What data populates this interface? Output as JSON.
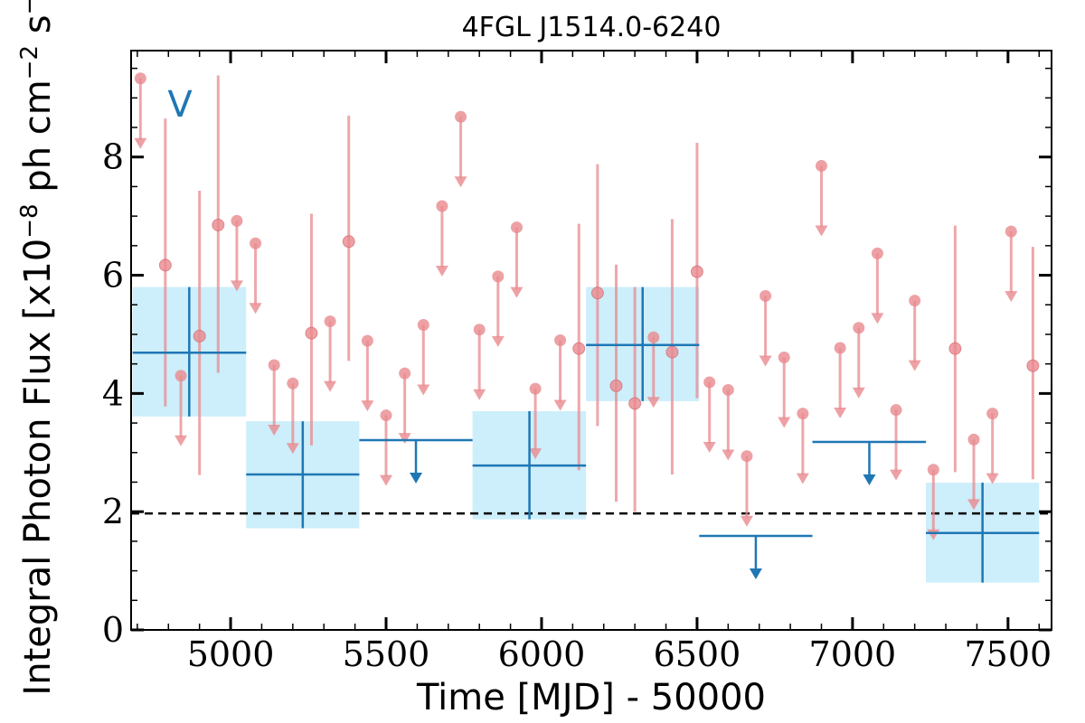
{
  "chart_data": {
    "type": "scatter",
    "title": "4FGL J1514.0-6240",
    "xlabel": "Time [MJD] - 50000",
    "ylabel": "Integral Photon Flux [x10",
    "ylabel_exp": "−8",
    "ylabel_mid": " ph cm",
    "ylabel_exp2": "−2",
    "ylabel_end": " s",
    "ylabel_exp3": "−1",
    "ylabel_close": "]",
    "panel_label": "V",
    "xlim": [
      4680,
      7640
    ],
    "ylim": [
      0,
      9.8
    ],
    "x_ticks": [
      5000,
      5500,
      6000,
      6500,
      7000,
      7500
    ],
    "y_ticks": [
      0,
      2,
      4,
      6,
      8
    ],
    "reference_line": 1.97,
    "colors": {
      "fine_bins": "#e88a8f",
      "coarse_bins": "#1f77b4",
      "coarse_box": "#cdeefb",
      "reference": "#000000"
    },
    "fine_detections": [
      {
        "x": 4790,
        "y": 6.17,
        "low": 3.78,
        "high": 8.65
      },
      {
        "x": 4900,
        "y": 4.97,
        "low": 2.62,
        "high": 7.43
      },
      {
        "x": 4960,
        "y": 6.85,
        "low": 4.35,
        "high": 9.38
      },
      {
        "x": 5260,
        "y": 5.02,
        "low": 3.12,
        "high": 7.04
      },
      {
        "x": 5380,
        "y": 6.57,
        "low": 4.55,
        "high": 8.7
      },
      {
        "x": 6120,
        "y": 4.76,
        "low": 2.7,
        "high": 6.87
      },
      {
        "x": 6180,
        "y": 5.7,
        "low": 3.45,
        "high": 7.88
      },
      {
        "x": 6240,
        "y": 4.13,
        "low": 2.17,
        "high": 6.18
      },
      {
        "x": 6300,
        "y": 3.83,
        "low": 2.0,
        "high": 5.8
      },
      {
        "x": 6420,
        "y": 4.7,
        "low": 2.63,
        "high": 6.95
      },
      {
        "x": 6500,
        "y": 6.06,
        "low": 3.92,
        "high": 8.24
      },
      {
        "x": 7330,
        "y": 4.76,
        "low": 2.67,
        "high": 6.84
      },
      {
        "x": 7580,
        "y": 4.47,
        "low": 2.55,
        "high": 6.48
      }
    ],
    "fine_upper_limits": [
      {
        "x": 4710,
        "y": 9.33
      },
      {
        "x": 4840,
        "y": 4.3
      },
      {
        "x": 5020,
        "y": 6.92
      },
      {
        "x": 5080,
        "y": 6.54
      },
      {
        "x": 5140,
        "y": 4.48
      },
      {
        "x": 5200,
        "y": 4.17
      },
      {
        "x": 5320,
        "y": 5.22
      },
      {
        "x": 5440,
        "y": 4.89
      },
      {
        "x": 5500,
        "y": 3.63
      },
      {
        "x": 5560,
        "y": 4.34
      },
      {
        "x": 5620,
        "y": 5.16
      },
      {
        "x": 5680,
        "y": 7.17
      },
      {
        "x": 5740,
        "y": 8.68
      },
      {
        "x": 5800,
        "y": 5.08
      },
      {
        "x": 5860,
        "y": 5.98
      },
      {
        "x": 5920,
        "y": 6.81
      },
      {
        "x": 5980,
        "y": 4.08
      },
      {
        "x": 6060,
        "y": 4.9
      },
      {
        "x": 6360,
        "y": 4.95
      },
      {
        "x": 6540,
        "y": 4.19
      },
      {
        "x": 6600,
        "y": 4.06
      },
      {
        "x": 6660,
        "y": 2.94
      },
      {
        "x": 6720,
        "y": 5.65
      },
      {
        "x": 6780,
        "y": 4.61
      },
      {
        "x": 6840,
        "y": 3.66
      },
      {
        "x": 6900,
        "y": 7.85
      },
      {
        "x": 6960,
        "y": 4.77
      },
      {
        "x": 7020,
        "y": 5.11
      },
      {
        "x": 7080,
        "y": 6.37
      },
      {
        "x": 7140,
        "y": 3.72
      },
      {
        "x": 7200,
        "y": 5.57
      },
      {
        "x": 7260,
        "y": 2.71
      },
      {
        "x": 7390,
        "y": 3.22
      },
      {
        "x": 7450,
        "y": 3.66
      },
      {
        "x": 7510,
        "y": 6.74
      }
    ],
    "coarse_detections": [
      {
        "x": 4867,
        "x_lo": 4685,
        "x_hi": 5050,
        "y": 4.69,
        "low": 3.61,
        "high": 5.8
      },
      {
        "x": 5232,
        "x_lo": 5050,
        "x_hi": 5414,
        "y": 2.63,
        "low": 1.72,
        "high": 3.53
      },
      {
        "x": 5961,
        "x_lo": 5778,
        "x_hi": 6143,
        "y": 2.78,
        "low": 1.87,
        "high": 3.7
      },
      {
        "x": 6325,
        "x_lo": 6143,
        "x_hi": 6507,
        "y": 4.82,
        "low": 3.87,
        "high": 5.8
      },
      {
        "x": 7418,
        "x_lo": 7236,
        "x_hi": 7600,
        "y": 1.64,
        "low": 0.8,
        "high": 2.49
      }
    ],
    "coarse_upper_limits": [
      {
        "x": 5596,
        "x_lo": 5414,
        "x_hi": 5778,
        "y": 3.21
      },
      {
        "x": 6689,
        "x_lo": 6507,
        "x_hi": 6871,
        "y": 1.59
      },
      {
        "x": 7054,
        "x_lo": 6871,
        "x_hi": 7236,
        "y": 3.18
      }
    ]
  }
}
